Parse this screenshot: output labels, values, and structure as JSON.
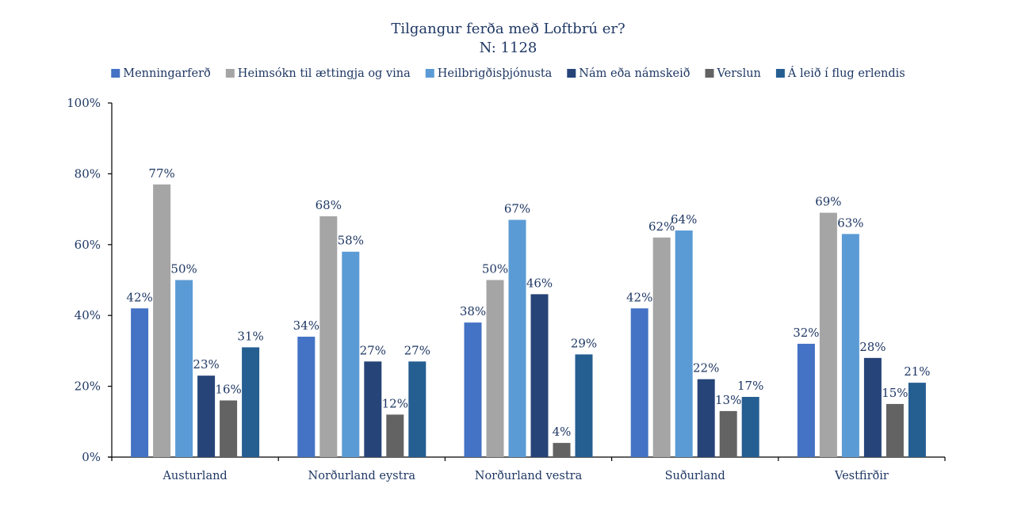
{
  "chart_data": {
    "type": "bar",
    "title": "Tilgangur ferða með Loftbrú er?",
    "subtitle": "N: 1128",
    "xlabel": "",
    "ylabel": "",
    "ylim": [
      0,
      100
    ],
    "y_ticks": [
      "0%",
      "20%",
      "40%",
      "60%",
      "80%",
      "100%"
    ],
    "y_tick_values": [
      0,
      20,
      40,
      60,
      80,
      100
    ],
    "grid": false,
    "legend_position": "top",
    "categories": [
      "Austurland",
      "Norðurland eystra",
      "Norðurland vestra",
      "Suðurland",
      "Vestfirðir"
    ],
    "series": [
      {
        "name": "Menningarferð",
        "color": "#4472c4",
        "values": [
          42,
          34,
          38,
          42,
          32
        ]
      },
      {
        "name": "Heimsókn til ættingja og vina",
        "color": "#a5a5a5",
        "values": [
          77,
          68,
          50,
          62,
          69
        ]
      },
      {
        "name": "Heilbrigðisþjónusta",
        "color": "#5b9bd5",
        "values": [
          50,
          58,
          67,
          64,
          63
        ]
      },
      {
        "name": "Nám eða námskeið",
        "color": "#264478",
        "values": [
          23,
          27,
          46,
          22,
          28
        ]
      },
      {
        "name": "Verslun",
        "color": "#636363",
        "values": [
          16,
          12,
          4,
          13,
          15
        ]
      },
      {
        "name": "Á leið í flug erlendis",
        "color": "#255e91",
        "values": [
          31,
          27,
          29,
          17,
          21
        ]
      }
    ],
    "value_suffix": "%"
  }
}
